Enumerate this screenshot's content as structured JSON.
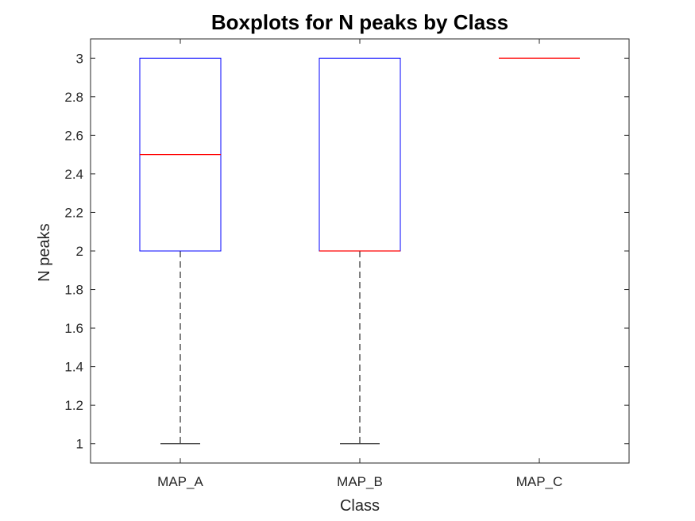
{
  "chart_data": {
    "type": "boxplot",
    "title": "Boxplots for N peaks by Class",
    "xlabel": "Class",
    "ylabel": "N peaks",
    "categories": [
      "MAP_A",
      "MAP_B",
      "MAP_C"
    ],
    "boxes": [
      {
        "category": "MAP_A",
        "whisker_low": 1,
        "q1": 2,
        "median": 2.5,
        "q3": 3,
        "whisker_high": 3
      },
      {
        "category": "MAP_B",
        "whisker_low": 1,
        "q1": 2,
        "median": 2,
        "q3": 3,
        "whisker_high": 3
      },
      {
        "category": "MAP_C",
        "whisker_low": 3,
        "q1": 3,
        "median": 3,
        "q3": 3,
        "whisker_high": 3
      }
    ],
    "ylim": [
      0.9,
      3.1
    ],
    "yticks": [
      1,
      1.2,
      1.4,
      1.6,
      1.8,
      2,
      2.2,
      2.4,
      2.6,
      2.8,
      3
    ],
    "ytick_labels": [
      "1",
      "1.2",
      "1.4",
      "1.6",
      "1.8",
      "2",
      "2.2",
      "2.4",
      "2.6",
      "2.8",
      "3"
    ],
    "grid": false,
    "legend": "none",
    "colors": {
      "box": "#0000ff",
      "median": "#ff0000",
      "whisker": "#000000",
      "axis": "#262626"
    }
  }
}
